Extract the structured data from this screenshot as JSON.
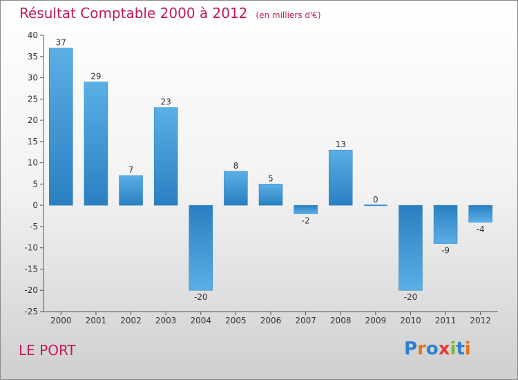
{
  "header": {
    "title": "Résultat Comptable 2000 à 2012",
    "unit": "(en milliers d'€)"
  },
  "footer": {
    "commune": "LE PORT",
    "logo_text": "Proxiti",
    "logo_letters": [
      {
        "ch": "P",
        "color": "#2e7fd1"
      },
      {
        "ch": "r",
        "color": "#e8731a"
      },
      {
        "ch": "o",
        "color": "#2e7fd1"
      },
      {
        "ch": "x",
        "color": "#e33b3b"
      },
      {
        "ch": "i",
        "color": "#7cb82f"
      },
      {
        "ch": "t",
        "color": "#2e7fd1"
      },
      {
        "ch": "i",
        "color": "#e8731a"
      }
    ]
  },
  "colors": {
    "bar_light": "#5aafe6",
    "bar_dark": "#2a7fc1",
    "title": "#c2185b",
    "text": "#333333"
  },
  "chart_data": {
    "type": "bar",
    "title": "Résultat Comptable 2000 à 2012",
    "subtitle": "(en milliers d'€)",
    "categories": [
      "2000",
      "2001",
      "2002",
      "2003",
      "2004",
      "2005",
      "2006",
      "2007",
      "2008",
      "2009",
      "2010",
      "2011",
      "2012"
    ],
    "values": [
      37,
      29,
      7,
      23,
      -20,
      8,
      5,
      -2,
      13,
      0,
      -20,
      -9,
      -4
    ],
    "ylim": [
      -25,
      40
    ],
    "yticks": [
      40,
      35,
      30,
      25,
      20,
      15,
      10,
      5,
      0,
      -5,
      -10,
      -15,
      -20,
      -25
    ],
    "grid": false,
    "legend": "none"
  }
}
